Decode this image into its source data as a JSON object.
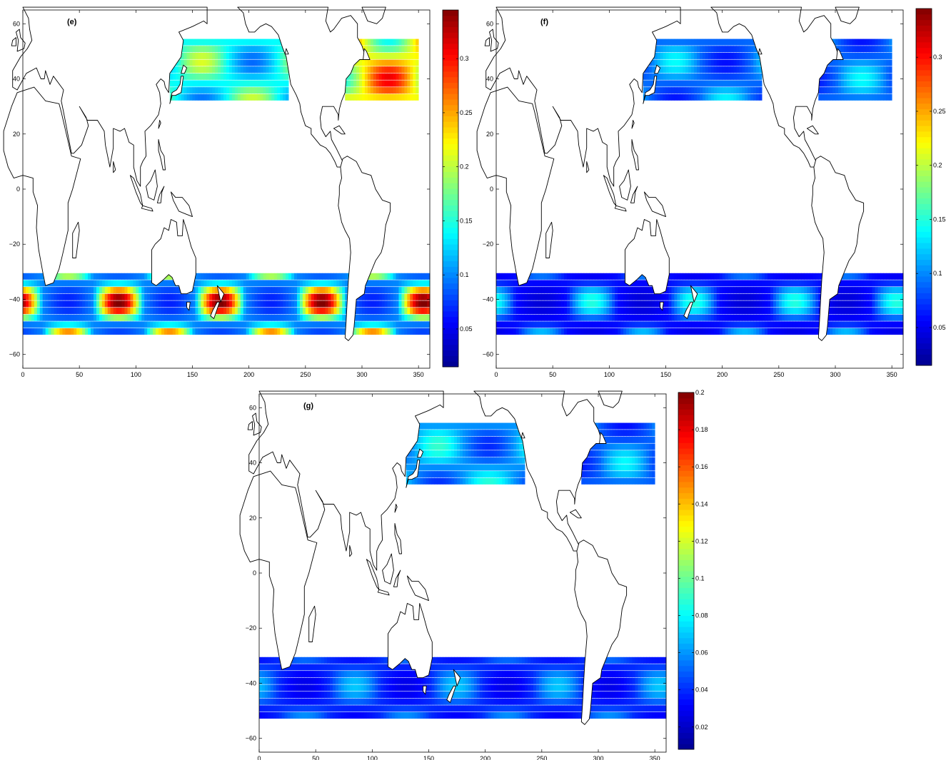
{
  "figure": {
    "colormap": [
      "#00008f",
      "#0000ff",
      "#0080ff",
      "#00ffff",
      "#80ff80",
      "#ffff00",
      "#ff8000",
      "#ff0000",
      "#800000"
    ],
    "x_ticks": [
      "0",
      "50",
      "100",
      "150",
      "200",
      "250",
      "300",
      "350"
    ],
    "y_ticks": [
      "60",
      "40",
      "20",
      "0",
      "−20",
      "−40",
      "−60"
    ],
    "land_color": "#ffffff",
    "coastline_color": "#000000"
  },
  "panels": [
    {
      "id": "e",
      "label": "(e)",
      "colorbar_ticks": [
        "0.3",
        "0.25",
        "0.2",
        "0.15",
        "0.1",
        "0.05"
      ],
      "colorbar_range": [
        0.015,
        0.345
      ],
      "regions": [
        {
          "name": "north-pacific",
          "lon": [
            130,
            235
          ],
          "lat": [
            32,
            54
          ],
          "mean": 0.14,
          "peak": 0.21
        },
        {
          "name": "north-atlantic",
          "lon": [
            285,
            350
          ],
          "lat": [
            32,
            54
          ],
          "mean": 0.22,
          "peak": 0.31
        },
        {
          "name": "southern-ocean",
          "lon": [
            0,
            360
          ],
          "lat": [
            -53,
            -31
          ],
          "mean": 0.1,
          "peak": 0.35
        }
      ]
    },
    {
      "id": "f",
      "label": "(f)",
      "colorbar_ticks": [
        "0.3",
        "0.25",
        "0.2",
        "0.15",
        "0.1",
        "0.05"
      ],
      "colorbar_range": [
        0.015,
        0.345
      ],
      "regions": [
        {
          "name": "north-pacific",
          "lon": [
            130,
            235
          ],
          "lat": [
            32,
            54
          ],
          "mean": 0.09,
          "peak": 0.14
        },
        {
          "name": "north-atlantic",
          "lon": [
            285,
            350
          ],
          "lat": [
            32,
            54
          ],
          "mean": 0.09,
          "peak": 0.14
        },
        {
          "name": "southern-ocean",
          "lon": [
            0,
            360
          ],
          "lat": [
            -53,
            -31
          ],
          "mean": 0.06,
          "peak": 0.15
        }
      ]
    },
    {
      "id": "g",
      "label": "(g)",
      "colorbar_ticks": [
        "0.2",
        "0.18",
        "0.16",
        "0.14",
        "0.12",
        "0.1",
        "0.08",
        "0.06",
        "0.04",
        "0.02"
      ],
      "colorbar_range": [
        0.008,
        0.2
      ],
      "regions": [
        {
          "name": "north-pacific",
          "lon": [
            130,
            235
          ],
          "lat": [
            32,
            54
          ],
          "mean": 0.06,
          "peak": 0.09
        },
        {
          "name": "north-atlantic",
          "lon": [
            285,
            350
          ],
          "lat": [
            32,
            54
          ],
          "mean": 0.05,
          "peak": 0.08
        },
        {
          "name": "southern-ocean",
          "lon": [
            0,
            360
          ],
          "lat": [
            -53,
            -31
          ],
          "mean": 0.04,
          "peak": 0.07
        }
      ]
    }
  ]
}
